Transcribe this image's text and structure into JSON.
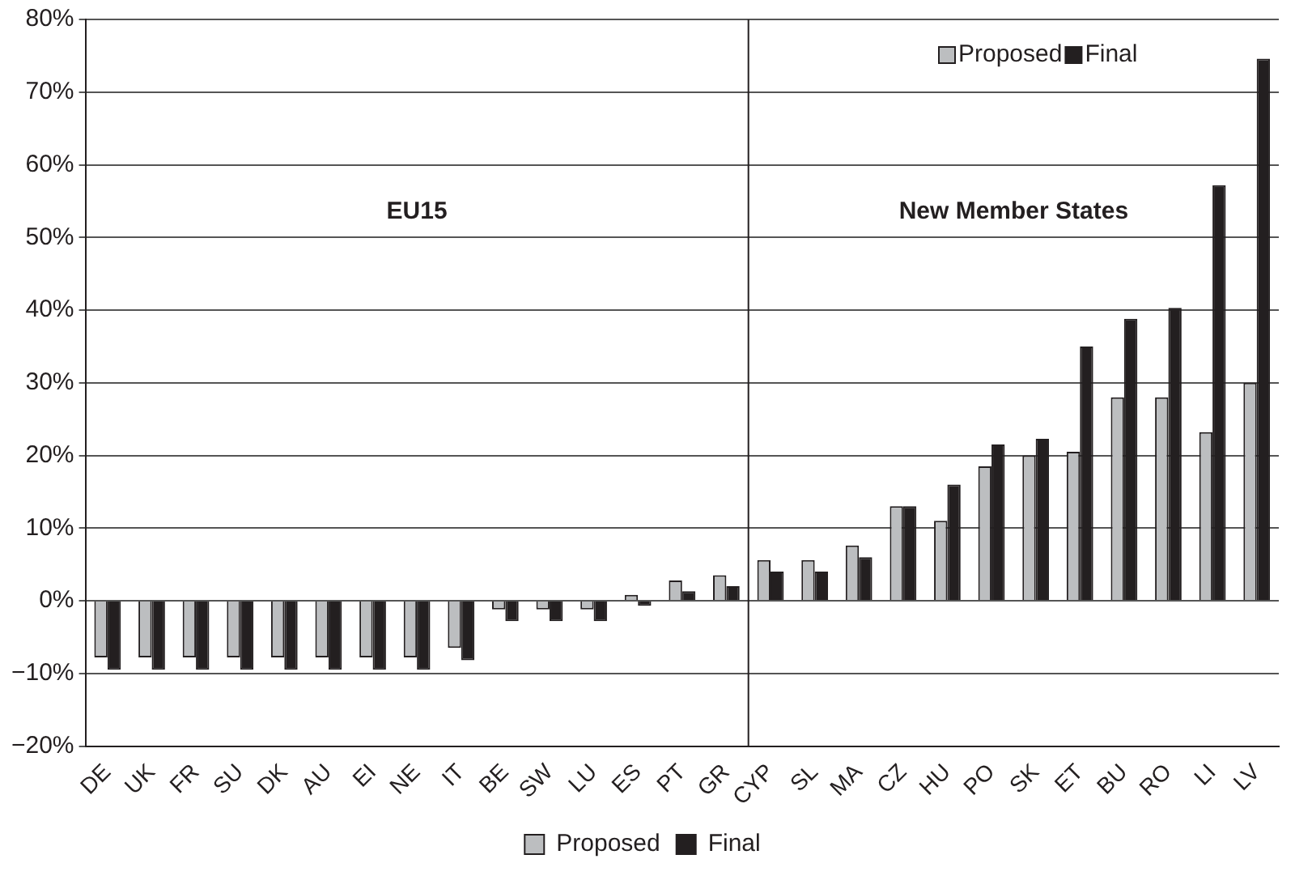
{
  "chart_data": {
    "type": "bar",
    "categories": [
      "DE",
      "UK",
      "FR",
      "SU",
      "DK",
      "AU",
      "EI",
      "NE",
      "IT",
      "BE",
      "SW",
      "LU",
      "ES",
      "PT",
      "GR",
      "CYP",
      "SL",
      "MA",
      "CZ",
      "HU",
      "PO",
      "SK",
      "ET",
      "BU",
      "RO",
      "LI",
      "LV"
    ],
    "series": [
      {
        "name": "Proposed",
        "color": "#bcbec0",
        "values": [
          -7.8,
          -7.8,
          -7.8,
          -7.8,
          -7.8,
          -7.8,
          -7.8,
          -7.8,
          -6.5,
          -1.2,
          -1.2,
          -1.2,
          0.8,
          2.8,
          3.5,
          5.6,
          5.6,
          7.6,
          13,
          11,
          18.5,
          20,
          20.5,
          28,
          28,
          23.2,
          30
        ]
      },
      {
        "name": "Final",
        "color": "#231f20",
        "values": [
          -9.5,
          -9.5,
          -9.5,
          -9.5,
          -9.5,
          -9.5,
          -9.5,
          -9.5,
          -8.2,
          -2.8,
          -2.8,
          -2.8,
          -0.7,
          1.3,
          2,
          4,
          4,
          6,
          13,
          16,
          21.5,
          22.3,
          35,
          38.8,
          40.3,
          57.2,
          74.6
        ]
      }
    ],
    "ylim": [
      -20,
      80
    ],
    "yticks": [
      {
        "value": -20,
        "label": "−20%"
      },
      {
        "value": -10,
        "label": "−10%"
      },
      {
        "value": 0,
        "label": "0%"
      },
      {
        "value": 10,
        "label": "10%"
      },
      {
        "value": 20,
        "label": "20%"
      },
      {
        "value": 30,
        "label": "30%"
      },
      {
        "value": 40,
        "label": "40%"
      },
      {
        "value": 50,
        "label": "50%"
      },
      {
        "value": 60,
        "label": "60%"
      },
      {
        "value": 70,
        "label": "70%"
      },
      {
        "value": 80,
        "label": "80%"
      }
    ],
    "grid": "y",
    "legend": "bottom",
    "ref_lines": [
      {
        "axis": "x",
        "value": "CYP",
        "color": "#231f20"
      }
    ],
    "annotations": [
      "EU15",
      "New Member States"
    ]
  }
}
